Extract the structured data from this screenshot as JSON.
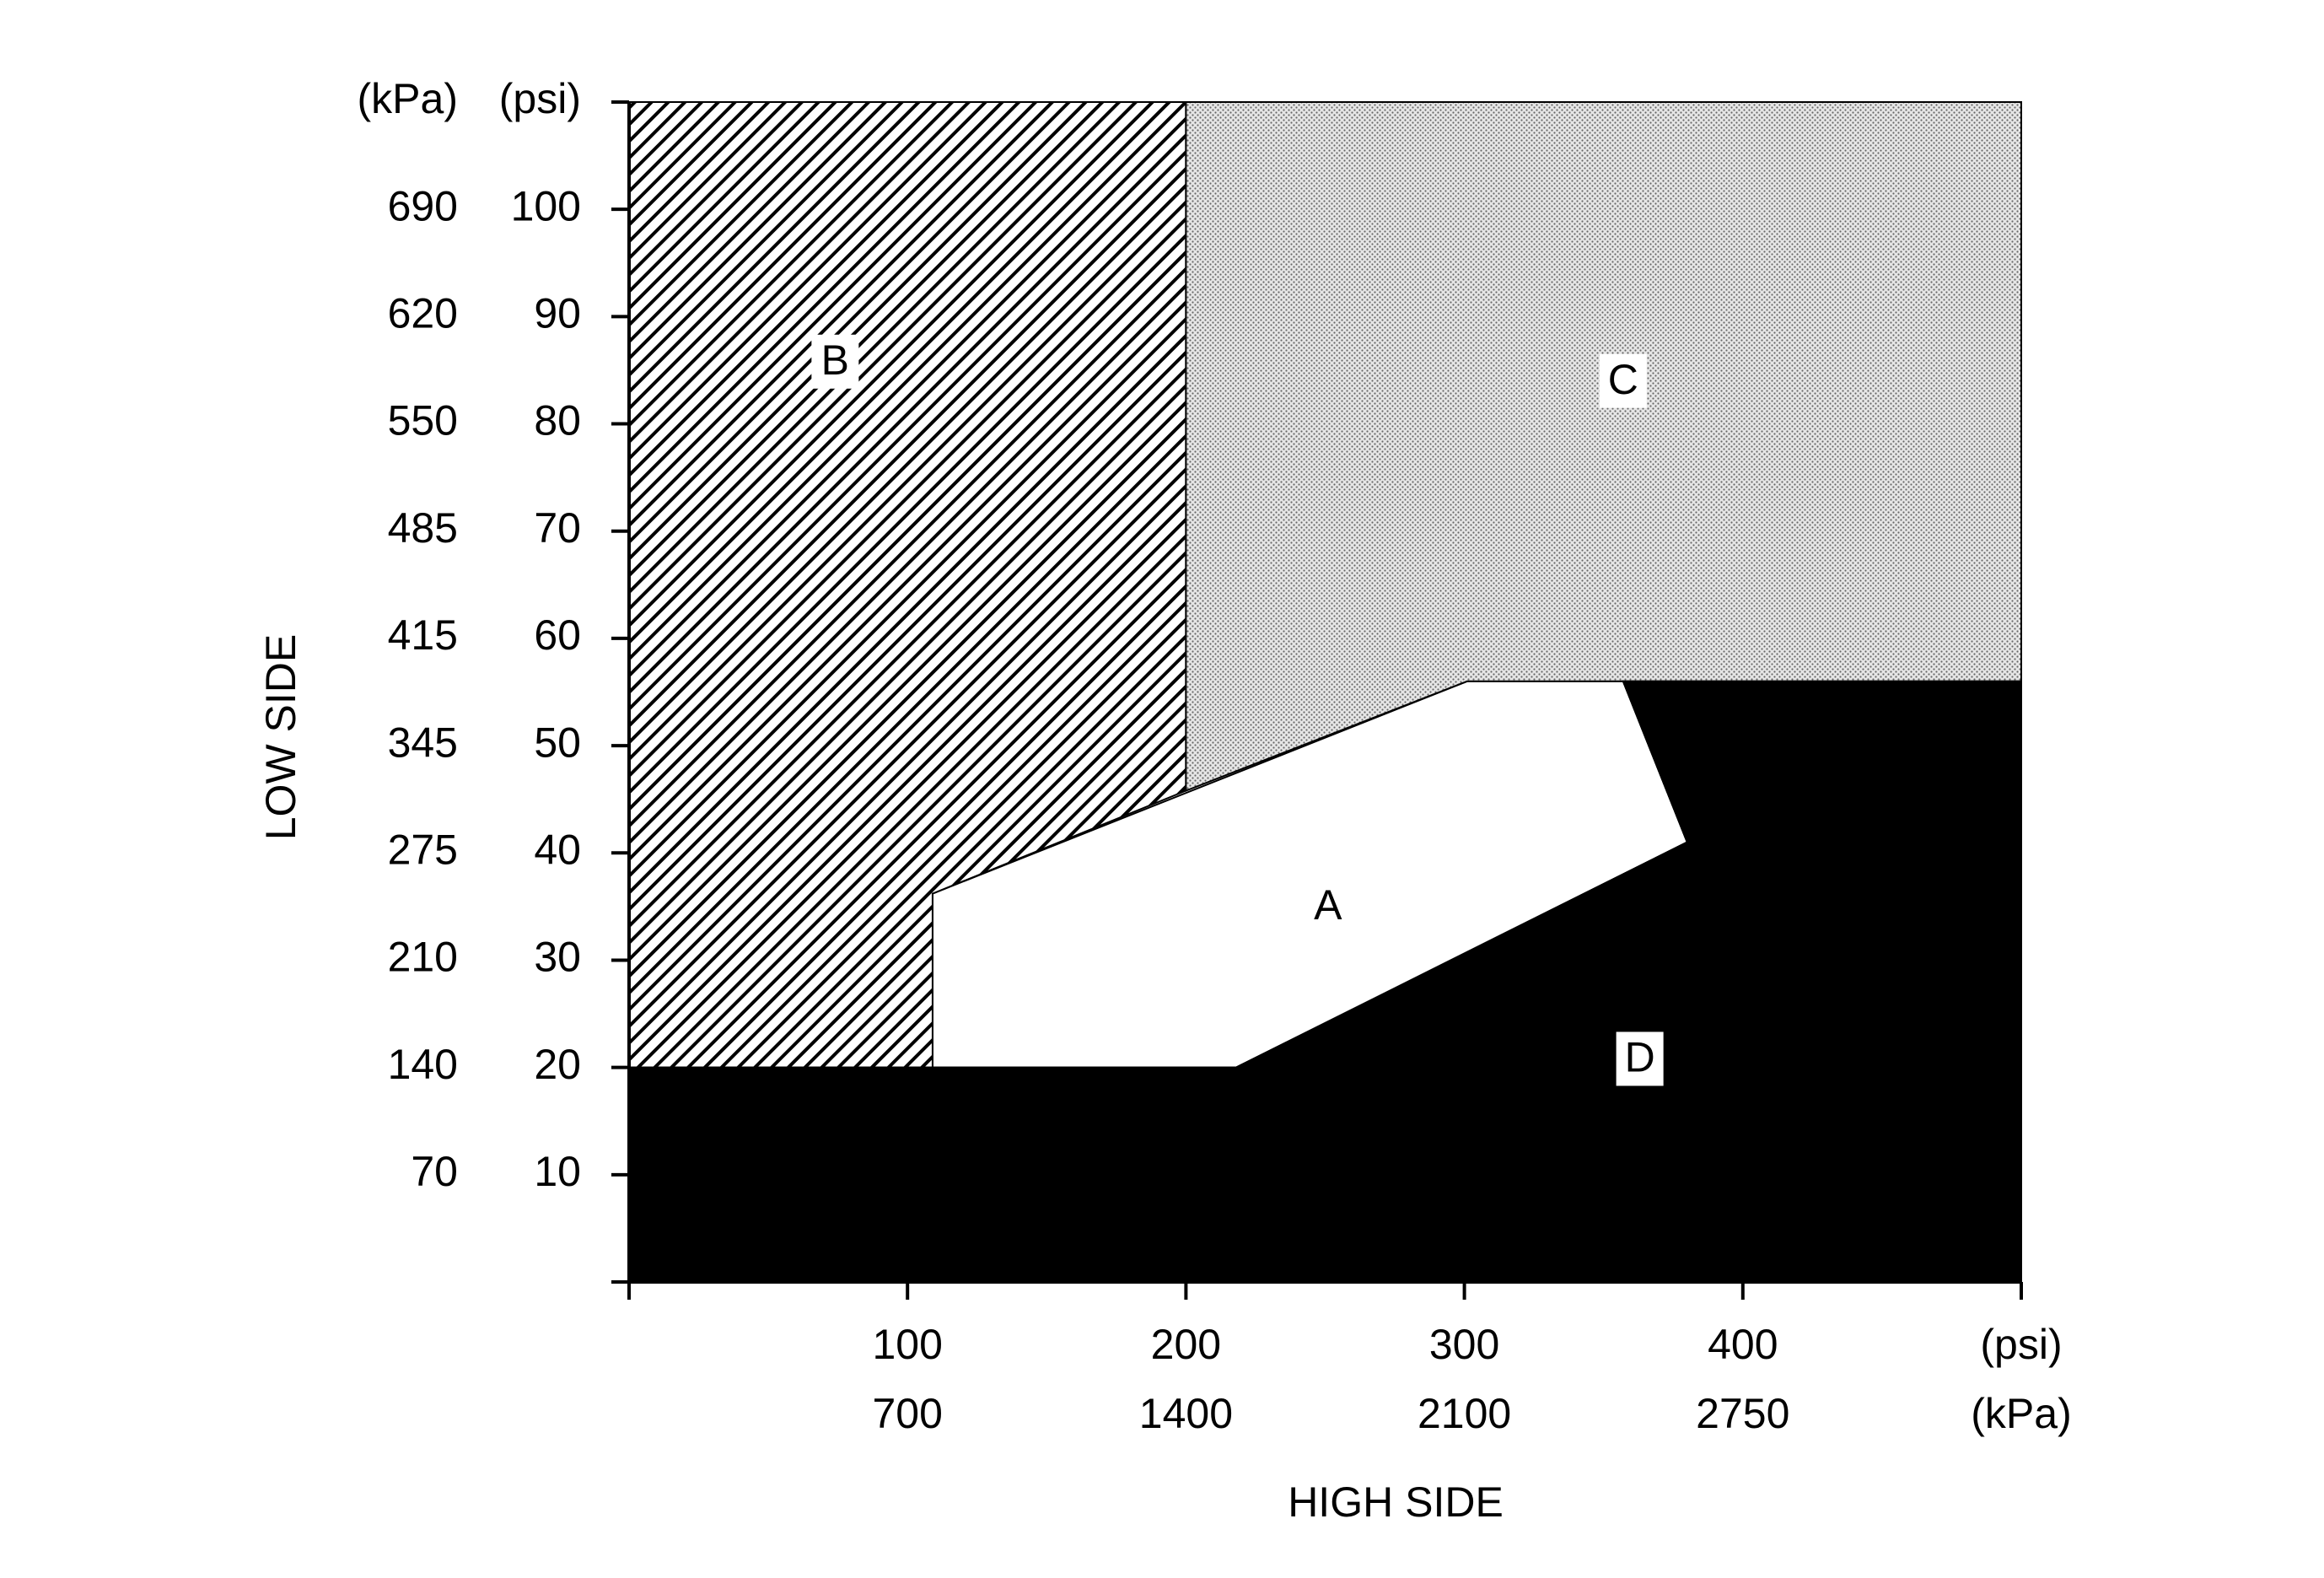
{
  "chart_data": {
    "type": "region",
    "xlabel": "HIGH SIDE",
    "ylabel": "LOW SIDE",
    "xlim": [
      0,
      500
    ],
    "ylim": [
      0,
      110
    ],
    "xticks": [
      {
        "value": 0,
        "label": null
      },
      100,
      200,
      300,
      400,
      {
        "value": 500,
        "label": "(psi)"
      }
    ],
    "xticks_kpa": [
      null,
      700,
      1400,
      2100,
      2750,
      "(kPa)"
    ],
    "yticks": [
      {
        "value": 0,
        "label": null
      },
      10,
      20,
      30,
      40,
      50,
      60,
      70,
      80,
      90,
      100,
      {
        "value": 110,
        "label": "(psi)"
      }
    ],
    "yticks_kpa": [
      null,
      70,
      140,
      210,
      275,
      345,
      415,
      485,
      550,
      620,
      690,
      "(kPa)"
    ],
    "regions": [
      {
        "label": "A",
        "fill": "white",
        "points": [
          [
            109,
            20
          ],
          [
            109,
            36.2
          ],
          [
            301,
            56
          ],
          [
            357,
            56
          ],
          [
            380,
            41
          ],
          [
            218,
            20
          ]
        ]
      },
      {
        "label": "B",
        "fill": "hatch",
        "points": [
          [
            0,
            20
          ],
          [
            0,
            110
          ],
          [
            200,
            110
          ],
          [
            200,
            45.8
          ],
          [
            109,
            36.2
          ],
          [
            109,
            20
          ]
        ]
      },
      {
        "label": "C",
        "fill": "dots",
        "points": [
          [
            200,
            110
          ],
          [
            500,
            110
          ],
          [
            500,
            56
          ],
          [
            357,
            56
          ],
          [
            301,
            56
          ],
          [
            200,
            45.8
          ]
        ]
      },
      {
        "label": "D",
        "fill": "black",
        "points": [
          [
            0,
            0
          ],
          [
            0,
            20
          ],
          [
            218,
            20
          ],
          [
            380,
            41
          ],
          [
            357,
            56
          ],
          [
            500,
            56
          ],
          [
            500,
            0
          ]
        ]
      }
    ]
  }
}
